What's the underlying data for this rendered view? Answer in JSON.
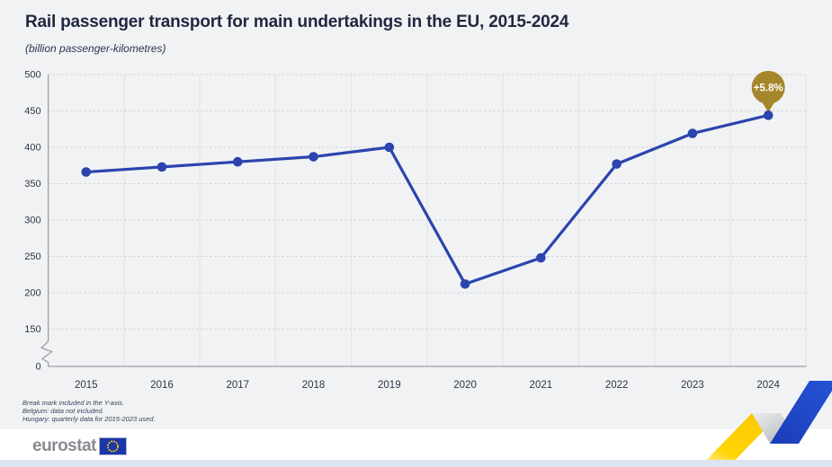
{
  "header": {
    "title": "Rail passenger transport for main undertakings in the EU, 2015-2024",
    "subtitle": "(billion passenger-kilometres)"
  },
  "chart_data": {
    "type": "line",
    "title": "Rail passenger transport for main undertakings in the EU, 2015-2024",
    "ylabel": "billion passenger-kilometres",
    "categories": [
      "2015",
      "2016",
      "2017",
      "2018",
      "2019",
      "2020",
      "2021",
      "2022",
      "2023",
      "2024"
    ],
    "values": [
      366,
      373,
      380,
      387,
      400,
      212,
      248,
      377,
      419,
      444
    ],
    "y_ticks": [
      500,
      450,
      400,
      350,
      300,
      250,
      200,
      150,
      0
    ],
    "ylim": [
      0,
      500
    ],
    "axis_break_between": [
      0,
      150
    ],
    "grid": true,
    "legend": "none",
    "annotation": {
      "label": "+5.8%",
      "category": "2024",
      "color": "#a5862b",
      "text_color": "#ffffff"
    },
    "line_color": "#2b44ae",
    "point_color": "#2b44ae"
  },
  "notes": [
    "Break mark included in the Y-axis.",
    "Belgium: data not included.",
    "Hungary: quarterly data for 2015-2023 used."
  ],
  "footer": {
    "logo_text": "eurostat"
  }
}
